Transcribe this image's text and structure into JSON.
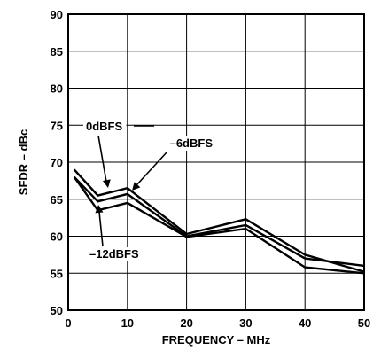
{
  "chart_data": {
    "type": "line",
    "xlabel": "FREQUENCY – MHz",
    "ylabel": "SFDR – dBc",
    "xlim": [
      0,
      50
    ],
    "ylim": [
      50,
      90
    ],
    "xticks": [
      "0",
      "10",
      "20",
      "30",
      "40",
      "50"
    ],
    "yticks": [
      "50",
      "55",
      "60",
      "65",
      "70",
      "75",
      "80",
      "85",
      "90"
    ],
    "grid": true,
    "series": [
      {
        "name": "0dBFS",
        "x": [
          1,
          5,
          10,
          20,
          30,
          40,
          50
        ],
        "y": [
          69.0,
          65.5,
          66.5,
          60.3,
          62.3,
          57.5,
          55.2
        ]
      },
      {
        "name": "–6dBFS",
        "x": [
          1,
          5,
          10,
          20,
          30,
          40,
          50
        ],
        "y": [
          68.0,
          64.7,
          65.7,
          60.0,
          61.5,
          57.0,
          56.0
        ]
      },
      {
        "name": "–12dBFS",
        "x": [
          1,
          5,
          10,
          20,
          30,
          40,
          50
        ],
        "y": [
          68.0,
          63.5,
          64.5,
          59.9,
          61.0,
          55.8,
          55.0
        ]
      }
    ]
  }
}
